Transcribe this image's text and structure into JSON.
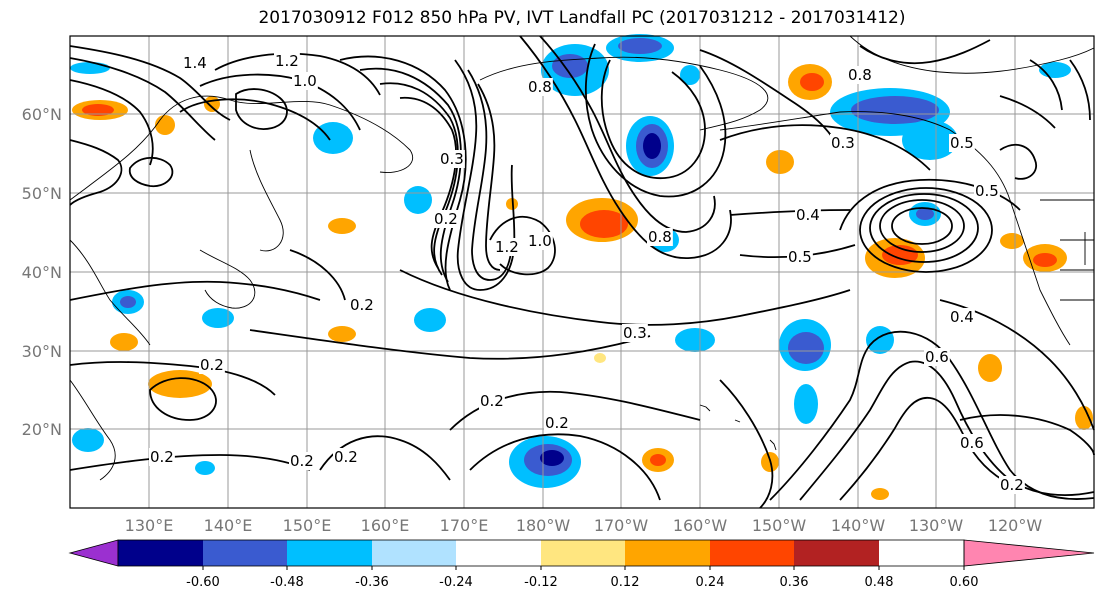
{
  "title": "2017030912 F012 850 hPa PV, IVT Landfall PC (2017031212 - 2017031412)",
  "lat_ticks": [
    "60°N",
    "50°N",
    "40°N",
    "30°N",
    "20°N"
  ],
  "lon_ticks": [
    "130°E",
    "140°E",
    "150°E",
    "160°E",
    "170°E",
    "180°W",
    "170°W",
    "160°W",
    "150°W",
    "140°W",
    "130°W",
    "120°W"
  ],
  "contour_labels": [
    "1.4",
    "1.2",
    "1.0",
    "0.8",
    "0.3",
    "0.2",
    "0.2",
    "0.2",
    "1.2",
    "1.0",
    "0.8",
    "0.4",
    "0.5",
    "0.5",
    "0.3",
    "0.3",
    "0.2",
    "0.2",
    "0.2",
    "0.2",
    "0.2",
    "0.6",
    "0.2",
    "0.4",
    "0.8",
    "0.6",
    "0.5"
  ],
  "colorbar": {
    "colors": [
      "#9b30d0",
      "#00008b",
      "#3a5bd0",
      "#00bfff",
      "#b0e2ff",
      "#ffffff",
      "#ffe680",
      "#ffa500",
      "#ff4500",
      "#b22222",
      "#ff85b0"
    ],
    "tick_labels": [
      "-0.60",
      "-0.48",
      "-0.36",
      "-0.24",
      "-0.12",
      "0.12",
      "0.24",
      "0.36",
      "0.48",
      "0.60"
    ]
  }
}
